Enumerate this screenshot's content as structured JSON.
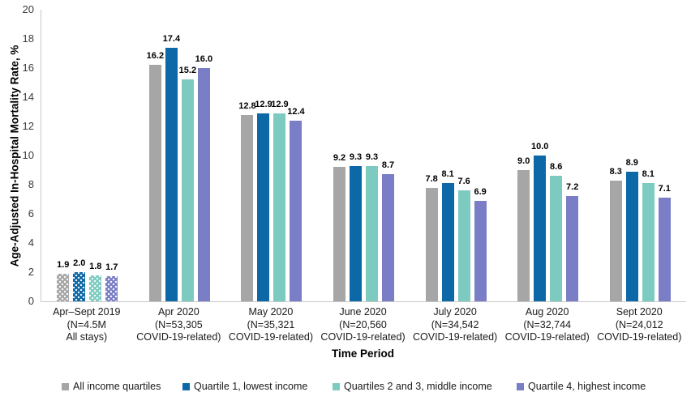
{
  "chart_data": {
    "type": "bar",
    "title": "",
    "ylabel": "Age-Adjusted In-Hospital Mortality Rate, %",
    "xlabel": "Time Period",
    "ylim": [
      0,
      20
    ],
    "ytick_step": 2,
    "grid": false,
    "legend_position": "bottom",
    "axis_line_color": "#c8c8c8",
    "patterned_category_index": 0,
    "pattern_note": "first category bars have white polka-dot fill",
    "categories": [
      [
        "Apr–Sept 2019",
        "(N=4.5M",
        "All stays)"
      ],
      [
        "Apr 2020",
        "(N=53,305",
        "COVID-19-related)"
      ],
      [
        "May 2020",
        "(N=35,321",
        "COVID-19-related)"
      ],
      [
        "June 2020",
        "(N=20,560",
        "COVID-19-related)"
      ],
      [
        "July 2020",
        "(N=34,542",
        "COVID-19-related)"
      ],
      [
        "Aug 2020",
        "(N=32,744",
        "COVID-19-related)"
      ],
      [
        "Sept 2020",
        "(N=24,012",
        "COVID-19-related)"
      ]
    ],
    "series": [
      {
        "name": "All income quartiles",
        "color": "#a6a6a6",
        "values": [
          1.9,
          16.2,
          12.8,
          9.2,
          7.8,
          9.0,
          8.3
        ]
      },
      {
        "name": "Quartile 1, lowest income",
        "color": "#0d68a8",
        "values": [
          2.0,
          17.4,
          12.9,
          9.3,
          8.1,
          10.0,
          8.9
        ]
      },
      {
        "name": "Quartiles 2 and 3, middle income",
        "color": "#7dcbc0",
        "values": [
          1.8,
          15.2,
          12.9,
          9.3,
          7.6,
          8.6,
          8.1
        ]
      },
      {
        "name": "Quartile 4, highest income",
        "color": "#7a7ec6",
        "values": [
          1.7,
          16.0,
          12.4,
          8.7,
          6.9,
          7.2,
          7.1
        ]
      }
    ]
  }
}
